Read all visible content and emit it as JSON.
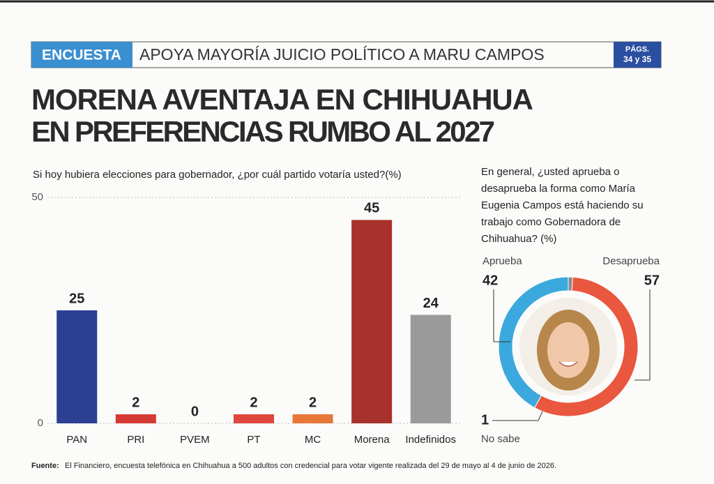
{
  "header": {
    "tag": "ENCUESTA",
    "headline": "APOYA MAYORÍA JUICIO POLÍTICO A MARU CAMPOS",
    "pages_label": "PÁGS.",
    "pages": "34 y 35"
  },
  "title_lines": [
    "MORENA AVENTAJA EN CHIHUAHUA",
    "EN PREFERENCIAS RUMBO AL 2027"
  ],
  "chart_data": [
    {
      "type": "bar",
      "title": "Si hoy hubiera elecciones para gobernador, ¿por cuál partido votaría usted?(%)",
      "categories": [
        "PAN",
        "PRI",
        "PVEM",
        "PT",
        "MC",
        "Morena",
        "Indefinidos"
      ],
      "values": [
        25,
        2,
        0,
        2,
        2,
        45,
        24
      ],
      "colors": [
        "#2b3f93",
        "#d63a35",
        "#3a9a4a",
        "#e0473c",
        "#e8773a",
        "#a8322b",
        "#9a9a9a"
      ],
      "ylim": [
        0,
        50
      ],
      "yticks": [
        0,
        50
      ],
      "grid": true
    },
    {
      "type": "donut",
      "title": "En general, ¿usted aprueba o desaprueba la forma como María Eugenia Campos está haciendo su trabajo como Gobernadora de Chihuahua? (%)",
      "series": [
        {
          "name": "Aprueba",
          "color": "#3ba9dd",
          "values": [
            42
          ]
        },
        {
          "name": "Desaprueba",
          "color": "#e9573f",
          "values": [
            57
          ]
        },
        {
          "name": "No sabe",
          "color": "#8a8a8a",
          "values": [
            1
          ]
        }
      ]
    }
  ],
  "source": {
    "label": "Fuente:",
    "text": "El Financiero, encuesta telefónica en Chihuahua a 500 adultos con credencial para votar vigente realizada del 29 de mayo al 4 de junio de 2026."
  }
}
